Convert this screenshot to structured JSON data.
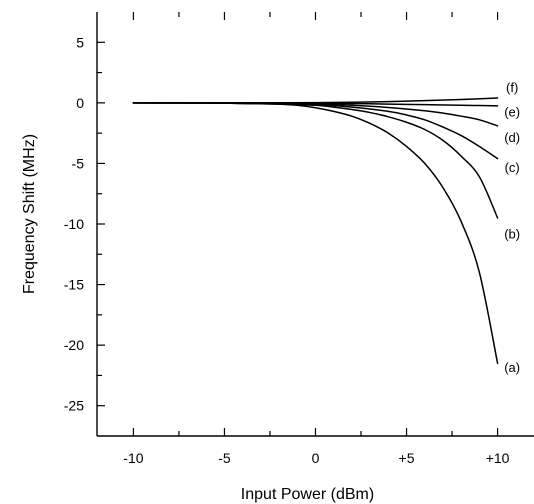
{
  "chart_data": {
    "type": "line",
    "title": "",
    "xlabel": "Input Power  (dBm)",
    "ylabel": "Frequency Shift  (MHz)",
    "xlim": [
      -12,
      12
    ],
    "ylim": [
      -27.5,
      7.5
    ],
    "grid": false,
    "legend": "none",
    "x_ticks": [
      {
        "value": -10,
        "label": "-10"
      },
      {
        "value": -5,
        "label": "-5"
      },
      {
        "value": 0,
        "label": "0"
      },
      {
        "value": 5,
        "label": "+5"
      },
      {
        "value": 10,
        "label": "+10"
      }
    ],
    "y_ticks": [
      {
        "value": 5,
        "label": "5"
      },
      {
        "value": 0,
        "label": "0"
      },
      {
        "value": -5,
        "label": "-5"
      },
      {
        "value": -10,
        "label": "-10"
      },
      {
        "value": -15,
        "label": "-15"
      },
      {
        "value": -20,
        "label": "-20"
      },
      {
        "value": -25,
        "label": "-25"
      }
    ],
    "x_minor_ticks": [
      -7.5,
      -2.5,
      2.5,
      7.5
    ],
    "y_minor_ticks": [
      2.5,
      -2.5,
      -7.5,
      -12.5,
      -17.5,
      -22.5
    ],
    "series": [
      {
        "name": "(a)",
        "x": [
          -10,
          -8,
          -6,
          -4,
          -2,
          -1,
          0,
          1,
          2,
          3,
          4,
          5,
          6,
          7,
          8,
          9,
          10
        ],
        "y": [
          0,
          0,
          0,
          -0.05,
          -0.1,
          -0.2,
          -0.4,
          -0.7,
          -1.1,
          -1.7,
          -2.5,
          -3.6,
          -5.0,
          -7.0,
          -9.8,
          -14.0,
          -21.5
        ]
      },
      {
        "name": "(b)",
        "x": [
          -10,
          -6,
          -4,
          -2,
          0,
          1,
          2,
          3,
          4,
          5,
          6,
          7,
          8,
          9,
          10
        ],
        "y": [
          0,
          0,
          -0.05,
          -0.1,
          -0.2,
          -0.35,
          -0.55,
          -0.8,
          -1.15,
          -1.6,
          -2.2,
          -3.1,
          -4.4,
          -6.1,
          -9.5
        ]
      },
      {
        "name": "(c)",
        "x": [
          -10,
          -4,
          -2,
          0,
          2,
          4,
          5,
          6,
          7,
          8,
          9,
          10
        ],
        "y": [
          0,
          -0.02,
          -0.05,
          -0.15,
          -0.35,
          -0.7,
          -1.0,
          -1.4,
          -2.0,
          -2.7,
          -3.6,
          -4.6
        ]
      },
      {
        "name": "(d)",
        "x": [
          -10,
          -4,
          0,
          2,
          4,
          6,
          7,
          8,
          9,
          10
        ],
        "y": [
          0,
          -0.02,
          -0.08,
          -0.2,
          -0.38,
          -0.65,
          -0.85,
          -1.1,
          -1.4,
          -1.9
        ]
      },
      {
        "name": "(e)",
        "x": [
          -10,
          -4,
          0,
          2,
          4,
          6,
          8,
          9,
          10
        ],
        "y": [
          0,
          0,
          -0.03,
          -0.06,
          -0.1,
          -0.15,
          -0.2,
          -0.22,
          -0.25
        ]
      },
      {
        "name": "(f)",
        "x": [
          -10,
          -4,
          0,
          2,
          4,
          6,
          8,
          10
        ],
        "y": [
          0,
          0,
          0.02,
          0.05,
          0.1,
          0.18,
          0.28,
          0.4
        ]
      }
    ],
    "series_label_positions": [
      {
        "name": "(a)",
        "x": 10.8,
        "y": -21.8
      },
      {
        "name": "(b)",
        "x": 10.8,
        "y": -10.8
      },
      {
        "name": "(c)",
        "x": 10.8,
        "y": -5.3
      },
      {
        "name": "(d)",
        "x": 10.8,
        "y": -2.8
      },
      {
        "name": "(e)",
        "x": 10.8,
        "y": -0.7
      },
      {
        "name": "(f)",
        "x": 10.8,
        "y": 1.3
      }
    ]
  }
}
